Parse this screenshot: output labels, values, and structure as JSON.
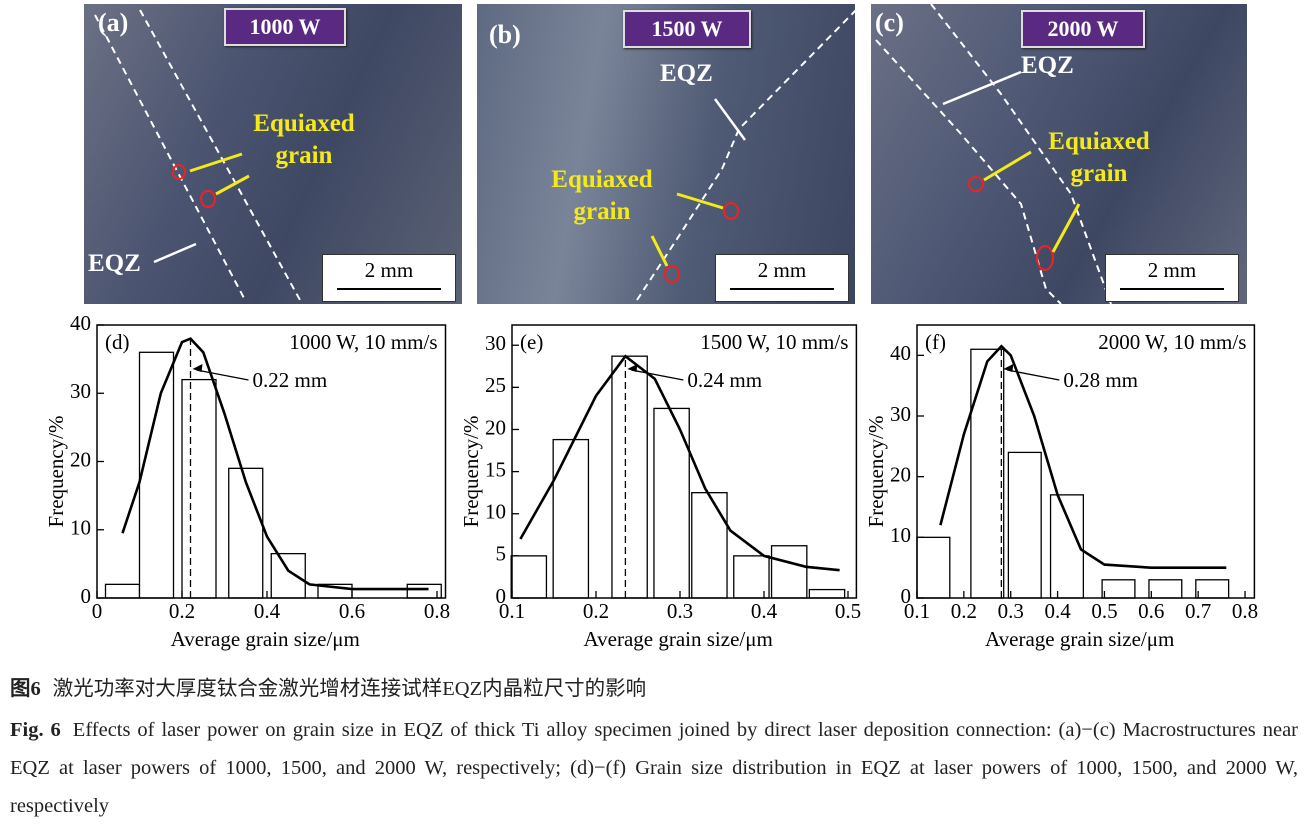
{
  "panels": [
    {
      "label": "(a)",
      "title": "1000 W",
      "annotations": [
        "Equiaxed grain",
        "EQZ"
      ],
      "scale_bar": "2 mm"
    },
    {
      "label": "(b)",
      "title": "1500 W",
      "annotations": [
        "EQZ",
        "Equiaxed grain"
      ],
      "scale_bar": "2 mm"
    },
    {
      "label": "(c)",
      "title": "2000 W",
      "annotations": [
        "EQZ",
        "Equiaxed grain"
      ],
      "scale_bar": "2 mm"
    }
  ],
  "chart_data": [
    {
      "type": "bar",
      "panel_label": "(d)",
      "subtitle": "1000 W, 10 mm/s",
      "xlabel": "Average grain size/μm",
      "ylabel": "Frequency/%",
      "x": [
        0.06,
        0.14,
        0.24,
        0.35,
        0.45,
        0.56,
        0.77
      ],
      "values": [
        2,
        36,
        32,
        19,
        6.5,
        2,
        2
      ],
      "fit": {
        "x": [
          0.06,
          0.1,
          0.15,
          0.2,
          0.22,
          0.25,
          0.3,
          0.35,
          0.4,
          0.45,
          0.5,
          0.6,
          0.7,
          0.78
        ],
        "values": [
          9.5,
          17,
          30,
          37.5,
          38,
          36,
          27,
          17,
          9,
          4,
          2,
          1.3,
          1.3,
          1.3
        ]
      },
      "mean": 0.22,
      "annotation": "0.22 mm",
      "xlim": [
        0,
        0.82
      ],
      "ylim": [
        0,
        40
      ],
      "xticks": [
        0,
        0.2,
        0.4,
        0.6,
        0.8
      ],
      "yticks": [
        0,
        10,
        20,
        30,
        40
      ]
    },
    {
      "type": "bar",
      "panel_label": "(e)",
      "subtitle": "1500 W, 10 mm/s",
      "xlabel": "Average grain size/μm",
      "ylabel": "Frequency/%",
      "x": [
        0.12,
        0.17,
        0.24,
        0.29,
        0.335,
        0.385,
        0.43,
        0.475
      ],
      "values": [
        5,
        18.8,
        28.7,
        22.5,
        12.5,
        5,
        6.2,
        1
      ],
      "fit": {
        "x": [
          0.11,
          0.15,
          0.2,
          0.235,
          0.27,
          0.3,
          0.33,
          0.36,
          0.4,
          0.45,
          0.49
        ],
        "values": [
          7,
          14,
          24,
          28.7,
          26,
          20,
          13,
          8,
          5,
          3.7,
          3.3
        ]
      },
      "mean": 0.235,
      "annotation": "0.24 mm",
      "xlim": [
        0.1,
        0.51
      ],
      "ylim": [
        0,
        32.4
      ],
      "xticks": [
        0.1,
        0.2,
        0.3,
        0.4,
        0.5
      ],
      "yticks": [
        0,
        5,
        10,
        15,
        20,
        25,
        30
      ]
    },
    {
      "type": "bar",
      "panel_label": "(f)",
      "subtitle": "2000 W, 10 mm/s",
      "xlabel": "Average grain size/μm",
      "ylabel": "Frequency/%",
      "x": [
        0.135,
        0.25,
        0.33,
        0.42,
        0.53,
        0.63,
        0.73
      ],
      "values": [
        10,
        41,
        24,
        17,
        3,
        3,
        3
      ],
      "fit": {
        "x": [
          0.15,
          0.2,
          0.25,
          0.28,
          0.3,
          0.35,
          0.4,
          0.45,
          0.5,
          0.6,
          0.76
        ],
        "values": [
          12,
          27,
          39,
          41.5,
          40,
          30,
          17,
          8,
          5.5,
          5,
          5
        ]
      },
      "mean": 0.28,
      "annotation": "0.28 mm",
      "xlim": [
        0.1,
        0.82
      ],
      "ylim": [
        0,
        45
      ],
      "xticks": [
        0.1,
        0.2,
        0.3,
        0.4,
        0.5,
        0.6,
        0.7,
        0.8
      ],
      "yticks": [
        0,
        10,
        20,
        30,
        40
      ]
    }
  ],
  "caption": {
    "zh": {
      "label": "图6",
      "text": "激光功率对大厚度钛合金激光增材连接试样EQZ内晶粒尺寸的影响"
    },
    "en": {
      "label": "Fig. 6",
      "text": "Effects of laser power on grain size in EQZ of thick Ti alloy specimen joined by direct laser deposition connection: (a)−(c) Macrostructures near EQZ at laser powers of 1000, 1500, and 2000 W, respectively; (d)−(f) Grain size distribution in EQZ at laser powers of 1000, 1500, and 2000 W, respectively"
    }
  }
}
